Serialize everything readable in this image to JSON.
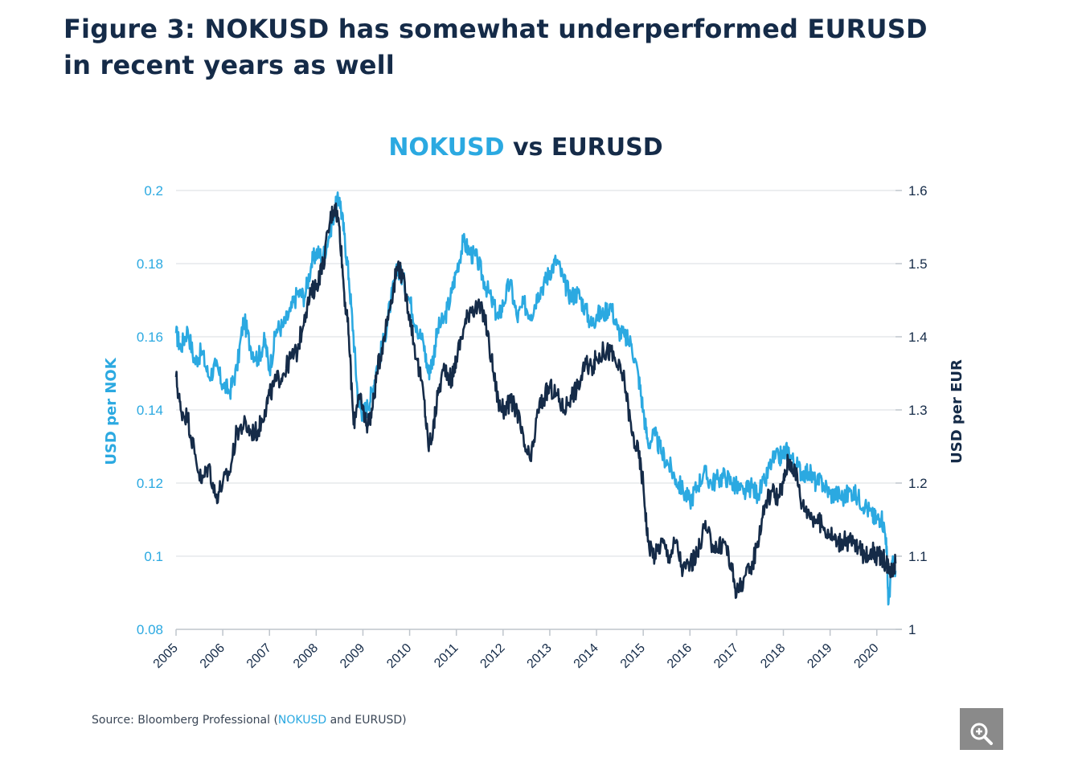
{
  "figure": {
    "title": "Figure 3: NOKUSD has somewhat underperformed EURUSD in recent years as well",
    "source_prefix": "Source: Bloomberg Professional (",
    "source_highlight": "NOKUSD",
    "source_suffix": " and EURUSD)",
    "zoom_icon": "zoom-in-icon"
  },
  "colors": {
    "nokusd": "#2ba9e1",
    "eurusd": "#152b48",
    "grid": "#e6e9ec",
    "axis_text_left": "#2ba9e1",
    "axis_text_right": "#152b48",
    "zoom_button": "#8a8a8a"
  },
  "chart_data": {
    "type": "line",
    "title_part1": "NOKUSD",
    "title_part2": " vs EURUSD",
    "xlabels": [
      "2005",
      "2006",
      "2007",
      "2008",
      "2009",
      "2010",
      "2011",
      "2012",
      "2013",
      "2014",
      "2015",
      "2016",
      "2017",
      "2018",
      "2019",
      "2020"
    ],
    "xrange": [
      2005.0,
      2020.4
    ],
    "y_left": {
      "label": "USD per NOK",
      "range": [
        0.08,
        0.2
      ],
      "ticks": [
        "0.08",
        "0.1",
        "0.12",
        "0.14",
        "0.16",
        "0.18",
        "0.2"
      ]
    },
    "y_right": {
      "label": "USD per EUR",
      "range": [
        1.0,
        1.6
      ],
      "ticks": [
        "1",
        "1.1",
        "1.2",
        "1.3",
        "1.4",
        "1.5",
        "1.6"
      ]
    },
    "grid": true,
    "series": [
      {
        "name": "NOKUSD",
        "axis": "left",
        "x": [
          2005.0,
          2005.1,
          2005.25,
          2005.4,
          2005.55,
          2005.7,
          2005.85,
          2006.0,
          2006.15,
          2006.3,
          2006.45,
          2006.6,
          2006.75,
          2006.9,
          2007.0,
          2007.15,
          2007.3,
          2007.45,
          2007.6,
          2007.75,
          2007.9,
          2008.0,
          2008.15,
          2008.3,
          2008.4,
          2008.5,
          2008.6,
          2008.7,
          2008.8,
          2008.9,
          2009.0,
          2009.1,
          2009.2,
          2009.3,
          2009.45,
          2009.6,
          2009.75,
          2009.85,
          2010.0,
          2010.15,
          2010.3,
          2010.4,
          2010.5,
          2010.6,
          2010.75,
          2010.9,
          2011.0,
          2011.15,
          2011.3,
          2011.45,
          2011.6,
          2011.75,
          2011.9,
          2012.0,
          2012.15,
          2012.3,
          2012.45,
          2012.6,
          2012.75,
          2012.9,
          2013.0,
          2013.15,
          2013.3,
          2013.45,
          2013.6,
          2013.75,
          2013.9,
          2014.0,
          2014.15,
          2014.3,
          2014.45,
          2014.6,
          2014.75,
          2014.9,
          2015.0,
          2015.1,
          2015.25,
          2015.4,
          2015.55,
          2015.7,
          2015.85,
          2016.0,
          2016.15,
          2016.3,
          2016.45,
          2016.6,
          2016.75,
          2016.9,
          2017.0,
          2017.15,
          2017.3,
          2017.45,
          2017.6,
          2017.75,
          2017.9,
          2018.0,
          2018.1,
          2018.25,
          2018.4,
          2018.55,
          2018.7,
          2018.85,
          2019.0,
          2019.15,
          2019.3,
          2019.45,
          2019.6,
          2019.75,
          2019.9,
          2020.0,
          2020.1,
          2020.2,
          2020.25,
          2020.32,
          2020.4
        ],
        "y": [
          0.161,
          0.157,
          0.162,
          0.153,
          0.156,
          0.149,
          0.152,
          0.147,
          0.145,
          0.151,
          0.165,
          0.157,
          0.154,
          0.159,
          0.151,
          0.162,
          0.163,
          0.167,
          0.172,
          0.171,
          0.18,
          0.183,
          0.182,
          0.189,
          0.195,
          0.198,
          0.188,
          0.176,
          0.16,
          0.142,
          0.139,
          0.141,
          0.145,
          0.152,
          0.159,
          0.17,
          0.179,
          0.176,
          0.17,
          0.163,
          0.158,
          0.15,
          0.154,
          0.162,
          0.165,
          0.172,
          0.178,
          0.186,
          0.183,
          0.181,
          0.175,
          0.17,
          0.165,
          0.169,
          0.175,
          0.165,
          0.169,
          0.166,
          0.172,
          0.175,
          0.178,
          0.181,
          0.175,
          0.171,
          0.172,
          0.168,
          0.163,
          0.166,
          0.166,
          0.169,
          0.162,
          0.16,
          0.158,
          0.149,
          0.14,
          0.131,
          0.133,
          0.128,
          0.125,
          0.121,
          0.118,
          0.115,
          0.119,
          0.123,
          0.12,
          0.121,
          0.122,
          0.12,
          0.119,
          0.117,
          0.119,
          0.117,
          0.12,
          0.126,
          0.127,
          0.128,
          0.129,
          0.125,
          0.123,
          0.123,
          0.12,
          0.12,
          0.117,
          0.117,
          0.116,
          0.118,
          0.116,
          0.114,
          0.111,
          0.11,
          0.111,
          0.105,
          0.087,
          0.098,
          0.096
        ]
      },
      {
        "name": "EURUSD",
        "axis": "right",
        "x": [
          2005.0,
          2005.1,
          2005.25,
          2005.4,
          2005.55,
          2005.7,
          2005.85,
          2006.0,
          2006.15,
          2006.3,
          2006.45,
          2006.6,
          2006.75,
          2006.9,
          2007.0,
          2007.15,
          2007.3,
          2007.45,
          2007.6,
          2007.75,
          2007.9,
          2008.0,
          2008.15,
          2008.3,
          2008.4,
          2008.5,
          2008.6,
          2008.7,
          2008.8,
          2008.9,
          2009.0,
          2009.1,
          2009.2,
          2009.3,
          2009.45,
          2009.6,
          2009.75,
          2009.85,
          2010.0,
          2010.15,
          2010.3,
          2010.4,
          2010.5,
          2010.6,
          2010.75,
          2010.9,
          2011.0,
          2011.15,
          2011.3,
          2011.45,
          2011.6,
          2011.75,
          2011.9,
          2012.0,
          2012.15,
          2012.3,
          2012.45,
          2012.6,
          2012.75,
          2012.9,
          2013.0,
          2013.15,
          2013.3,
          2013.45,
          2013.6,
          2013.75,
          2013.9,
          2014.0,
          2014.15,
          2014.3,
          2014.45,
          2014.6,
          2014.75,
          2014.9,
          2015.0,
          2015.1,
          2015.25,
          2015.4,
          2015.55,
          2015.7,
          2015.85,
          2016.0,
          2016.15,
          2016.3,
          2016.45,
          2016.6,
          2016.75,
          2016.9,
          2017.0,
          2017.15,
          2017.3,
          2017.45,
          2017.6,
          2017.75,
          2017.9,
          2018.0,
          2018.1,
          2018.25,
          2018.4,
          2018.55,
          2018.7,
          2018.85,
          2019.0,
          2019.15,
          2019.3,
          2019.45,
          2019.6,
          2019.75,
          2019.9,
          2020.0,
          2020.1,
          2020.2,
          2020.25,
          2020.32,
          2020.4
        ],
        "y": [
          1.345,
          1.3,
          1.29,
          1.24,
          1.2,
          1.225,
          1.18,
          1.2,
          1.215,
          1.27,
          1.28,
          1.27,
          1.27,
          1.3,
          1.32,
          1.34,
          1.35,
          1.37,
          1.38,
          1.43,
          1.46,
          1.47,
          1.5,
          1.56,
          1.58,
          1.55,
          1.46,
          1.4,
          1.28,
          1.32,
          1.3,
          1.28,
          1.3,
          1.35,
          1.4,
          1.45,
          1.5,
          1.48,
          1.43,
          1.37,
          1.32,
          1.25,
          1.27,
          1.32,
          1.36,
          1.34,
          1.37,
          1.41,
          1.44,
          1.44,
          1.43,
          1.37,
          1.31,
          1.3,
          1.31,
          1.3,
          1.25,
          1.23,
          1.3,
          1.32,
          1.33,
          1.32,
          1.3,
          1.32,
          1.33,
          1.36,
          1.36,
          1.37,
          1.38,
          1.38,
          1.36,
          1.34,
          1.27,
          1.24,
          1.2,
          1.12,
          1.1,
          1.12,
          1.1,
          1.12,
          1.08,
          1.09,
          1.1,
          1.14,
          1.12,
          1.11,
          1.12,
          1.08,
          1.05,
          1.07,
          1.08,
          1.12,
          1.17,
          1.19,
          1.18,
          1.2,
          1.23,
          1.22,
          1.17,
          1.16,
          1.15,
          1.14,
          1.13,
          1.12,
          1.12,
          1.12,
          1.11,
          1.1,
          1.11,
          1.1,
          1.1,
          1.09,
          1.09,
          1.08,
          1.09
        ]
      }
    ]
  }
}
